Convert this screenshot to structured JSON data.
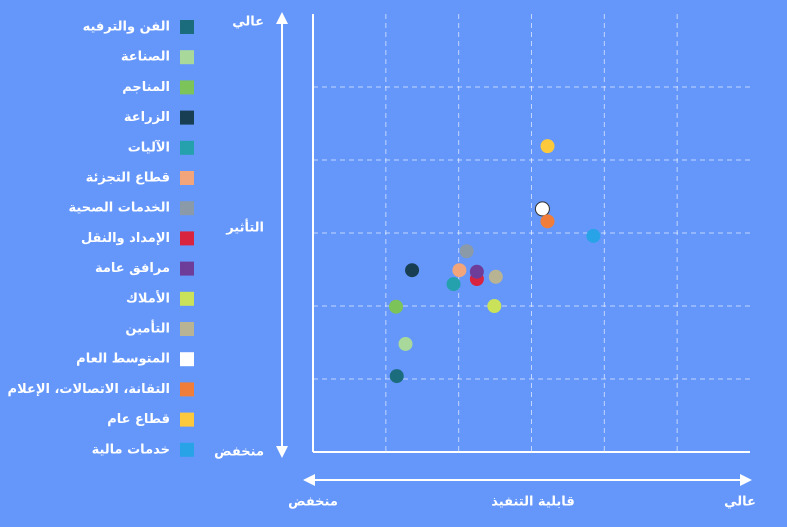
{
  "chart_data": {
    "type": "scatter",
    "y_label": "التأثير",
    "y_high": "عالي",
    "y_low": "منخفض",
    "x_label": "قابلية التنفيذ",
    "x_low": "منخفض",
    "x_high": "عالي",
    "xlim": [
      0,
      6
    ],
    "ylim": [
      0,
      6
    ],
    "xticks": [
      1,
      2,
      3,
      4,
      5
    ],
    "yticks": [
      1,
      2,
      3,
      4,
      5
    ],
    "grid": true,
    "legend": "left",
    "series": [
      {
        "name": "الفن والترفيه",
        "color": "#1b6d7e",
        "x": [
          1.15
        ],
        "values": [
          1.04
        ]
      },
      {
        "name": "الصناعة",
        "color": "#a9d99a",
        "x": [
          1.27
        ],
        "values": [
          1.48
        ]
      },
      {
        "name": "المناجم",
        "color": "#7cc35a",
        "x": [
          1.14
        ],
        "values": [
          1.99
        ]
      },
      {
        "name": "الزراعة",
        "color": "#173e52",
        "x": [
          1.36
        ],
        "values": [
          2.49
        ]
      },
      {
        "name": "الآليات",
        "color": "#25a0ad",
        "x": [
          1.93
        ],
        "values": [
          2.3
        ]
      },
      {
        "name": "قطاع التجزئة",
        "color": "#f2a57a",
        "x": [
          2.01
        ],
        "values": [
          2.49
        ]
      },
      {
        "name": "الخدمات الصحية",
        "color": "#8a9aa8",
        "x": [
          2.11
        ],
        "values": [
          2.75
        ]
      },
      {
        "name": "الإمداد والنقل",
        "color": "#d9243f",
        "x": [
          2.25
        ],
        "values": [
          2.37
        ]
      },
      {
        "name": "مرافق عامة",
        "color": "#6e3d9a",
        "x": [
          2.25
        ],
        "values": [
          2.47
        ]
      },
      {
        "name": "الأملاك",
        "color": "#c9e25a",
        "x": [
          2.49
        ],
        "values": [
          2.0
        ]
      },
      {
        "name": "التأمين",
        "color": "#b8b493",
        "x": [
          2.51
        ],
        "values": [
          2.4
        ]
      },
      {
        "name": "المتوسط العام",
        "color": "#ffffff",
        "x": [
          3.15
        ],
        "values": [
          3.33
        ]
      },
      {
        "name": "التقانة، الاتصالات، الإعلام",
        "color": "#f07e3a",
        "x": [
          3.22
        ],
        "values": [
          3.16
        ]
      },
      {
        "name": "قطاع عام",
        "color": "#fcc93d",
        "x": [
          3.22
        ],
        "values": [
          4.19
        ]
      },
      {
        "name": "خدمات مالية",
        "color": "#29a3e8",
        "x": [
          3.85
        ],
        "values": [
          2.96
        ]
      }
    ]
  }
}
